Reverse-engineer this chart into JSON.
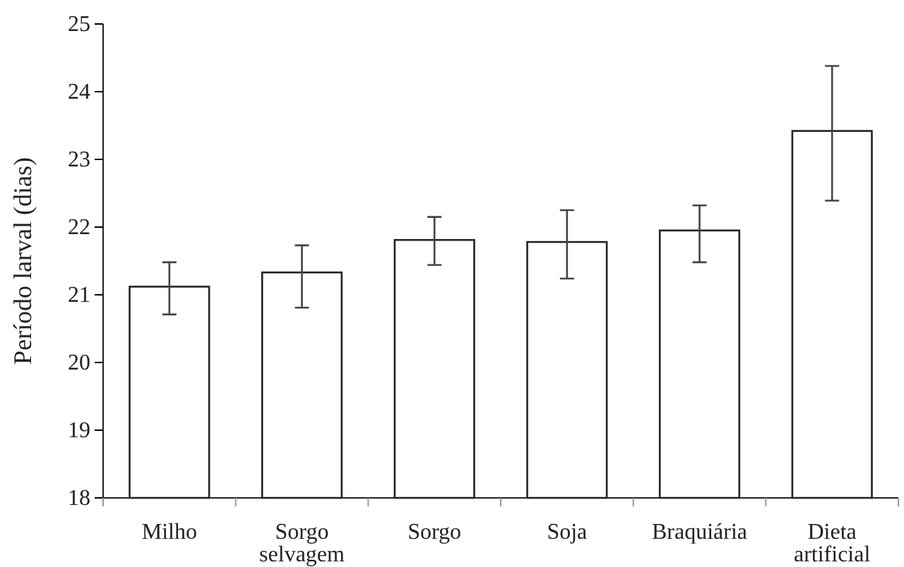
{
  "chart_data": {
    "type": "bar",
    "ylabel": "Período larval (dias)",
    "categories": [
      "Milho",
      "Sorgo selvagem",
      "Sorgo",
      "Soja",
      "Braquiária",
      "Dieta artificial"
    ],
    "values": [
      21.12,
      21.33,
      21.81,
      21.78,
      21.95,
      23.42
    ],
    "errors": [
      [
        20.71,
        21.48
      ],
      [
        20.81,
        21.73
      ],
      [
        21.44,
        22.15
      ],
      [
        21.24,
        22.25
      ],
      [
        21.48,
        22.32
      ],
      [
        22.39,
        24.38
      ]
    ],
    "color": "#ffffff",
    "ylim": [
      18,
      25
    ],
    "yticks": [
      18,
      19,
      20,
      21,
      22,
      23,
      24,
      25
    ],
    "grid": false
  }
}
